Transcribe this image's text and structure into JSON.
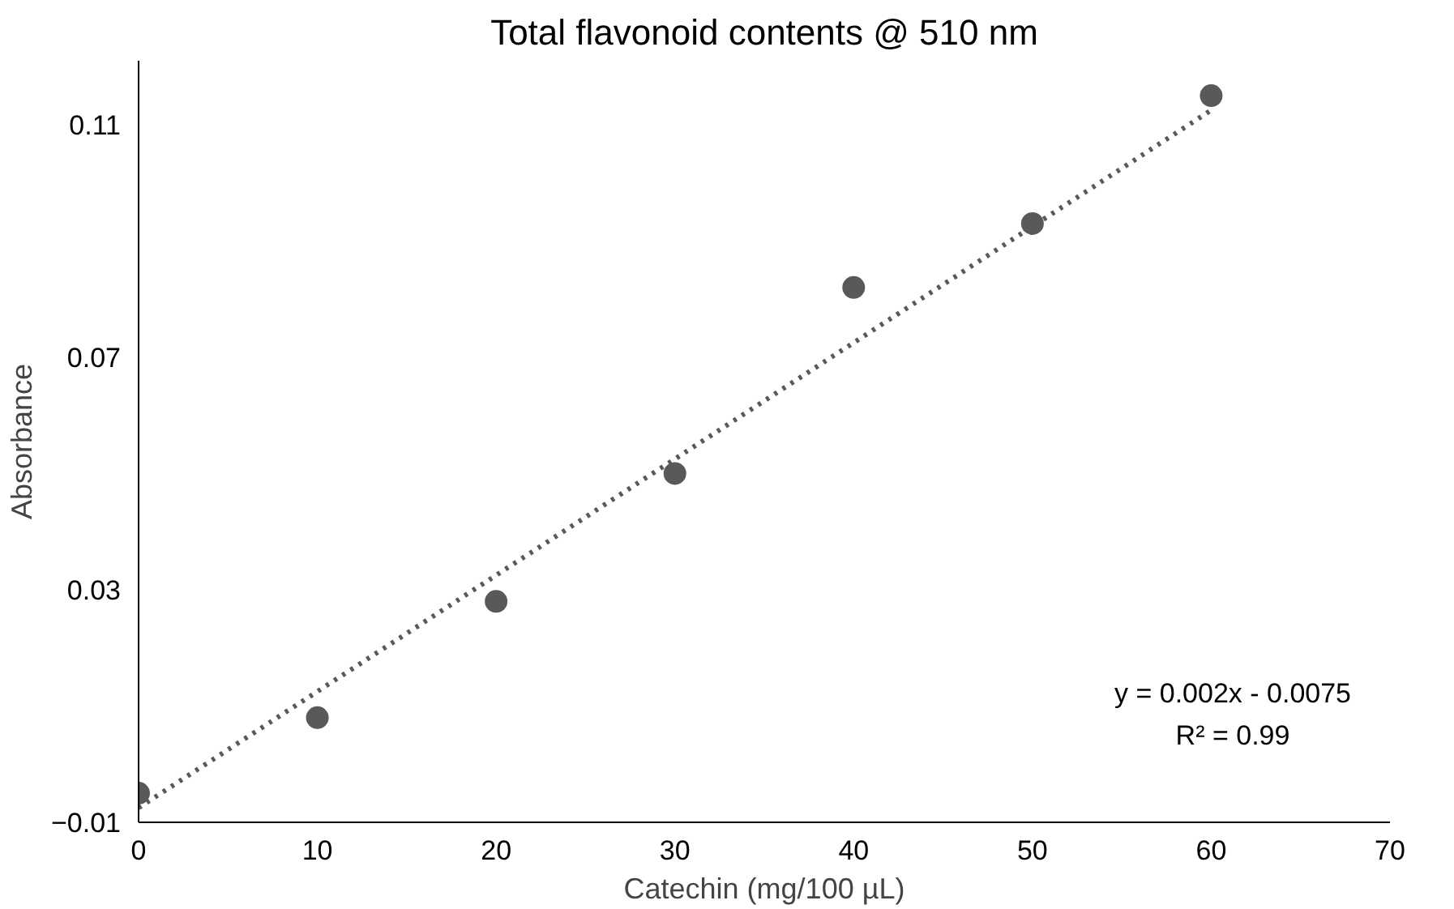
{
  "chart_data": {
    "type": "scatter",
    "title": "Total flavonoid contents @ 510 nm",
    "xlabel": "Catechin (mg/100 µL)",
    "ylabel": "Absorbance",
    "x": [
      0,
      10,
      20,
      30,
      40,
      50,
      60
    ],
    "series": [
      {
        "type": "scatter",
        "color": "#595959",
        "marker": "circle",
        "values": [
          -0.005,
          0.008,
          0.028,
          0.05,
          0.082,
          0.093,
          0.115
        ]
      },
      {
        "type": "line",
        "color": "#595959",
        "line_style": "dotted",
        "x": [
          0,
          60
        ],
        "values": [
          -0.0075,
          0.1125
        ]
      }
    ],
    "xlim": [
      0,
      70
    ],
    "xticks": [
      0,
      10,
      20,
      30,
      40,
      50,
      60,
      70
    ],
    "ylim": [
      -0.01,
      0.121
    ],
    "yticks": [
      -0.01,
      0.03,
      0.07,
      0.11
    ],
    "grid": false,
    "annotations": [
      "y = 0.002x - 0.0075",
      "R² = 0.99"
    ]
  }
}
